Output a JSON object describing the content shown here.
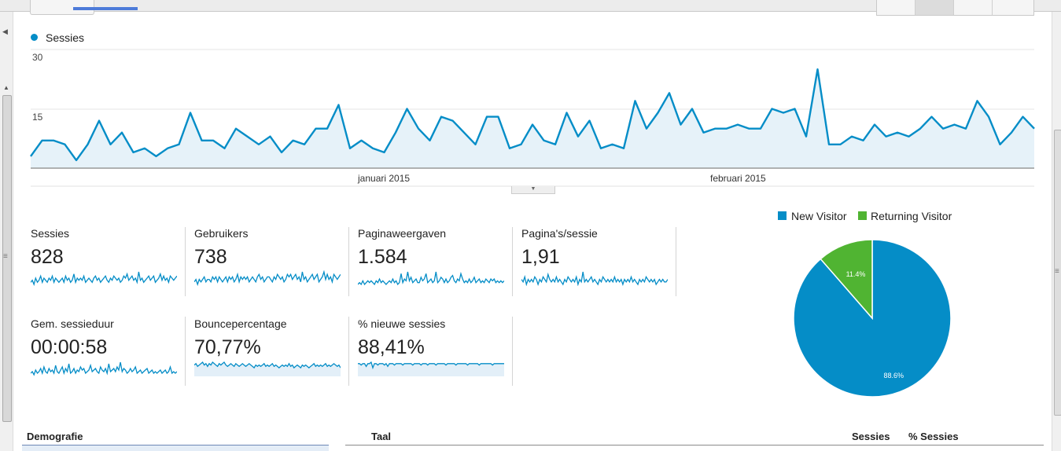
{
  "chart_data": [
    {
      "type": "area",
      "series": [
        {
          "name": "Sessies",
          "color": "#058dc7",
          "values": [
            3,
            7,
            7,
            6,
            2,
            6,
            12,
            6,
            9,
            4,
            5,
            3,
            5,
            6,
            14,
            7,
            7,
            5,
            10,
            8,
            6,
            8,
            4,
            7,
            6,
            10,
            10,
            16,
            5,
            7,
            5,
            4,
            9,
            15,
            10,
            7,
            13,
            12,
            9,
            6,
            13,
            13,
            5,
            6,
            11,
            7,
            6,
            14,
            8,
            12,
            5,
            6,
            5,
            17,
            10,
            14,
            19,
            11,
            15,
            9,
            10,
            10,
            11,
            10,
            10,
            15,
            14,
            15,
            8,
            25,
            6,
            6,
            8,
            7,
            11,
            8,
            9,
            8,
            10,
            13,
            10,
            11,
            10,
            17,
            13,
            6,
            9,
            13,
            10
          ]
        }
      ],
      "y_ticks": [
        "30",
        "15"
      ],
      "ylim": [
        0,
        30
      ],
      "x_labels": [
        "januari 2015",
        "februari 2015"
      ],
      "grid": true
    },
    {
      "type": "pie",
      "slices": [
        {
          "name": "New Visitor",
          "value": 88.6,
          "label": "88.6%",
          "color": "#058dc7"
        },
        {
          "name": "Returning Visitor",
          "value": 11.4,
          "label": "11.4%",
          "color": "#50b432"
        }
      ],
      "legend_position": "top"
    }
  ],
  "main_chart": {
    "legend_label": "Sessies",
    "y_tick_high": "30",
    "y_tick_mid": "15",
    "x_label_jan": "januari 2015",
    "x_label_feb": "februari 2015"
  },
  "metrics": [
    {
      "label": "Sessies",
      "value": "828",
      "spark": [
        3,
        4,
        2,
        5,
        3,
        4,
        6,
        3,
        5,
        4,
        3,
        5,
        4,
        6,
        3,
        5,
        4,
        3,
        4,
        5,
        3,
        6,
        4,
        5,
        3,
        4,
        7,
        3,
        5,
        4,
        5,
        4,
        6,
        3,
        4,
        5,
        4,
        3,
        5,
        6,
        4,
        5,
        3,
        4,
        5,
        6,
        4,
        3,
        5,
        4,
        6,
        5,
        4,
        5,
        3,
        4,
        6,
        5,
        7,
        4,
        5,
        6,
        4,
        5,
        3,
        8,
        4,
        5,
        3,
        4,
        5,
        6,
        4,
        5,
        6,
        3,
        4,
        5,
        7,
        4,
        6,
        4,
        5,
        3,
        6,
        5,
        4,
        5,
        6
      ],
      "area": false
    },
    {
      "label": "Gebruikers",
      "value": "738",
      "spark": [
        3,
        4,
        2,
        4,
        3,
        4,
        5,
        3,
        4,
        4,
        3,
        5,
        4,
        5,
        3,
        5,
        4,
        3,
        4,
        5,
        3,
        5,
        4,
        5,
        3,
        4,
        6,
        3,
        5,
        4,
        5,
        4,
        5,
        3,
        4,
        5,
        4,
        3,
        5,
        6,
        4,
        5,
        3,
        4,
        5,
        5,
        4,
        3,
        5,
        4,
        6,
        5,
        4,
        5,
        3,
        4,
        6,
        5,
        6,
        4,
        5,
        6,
        4,
        5,
        3,
        7,
        4,
        5,
        3,
        4,
        5,
        6,
        4,
        5,
        6,
        3,
        4,
        5,
        7,
        4,
        6,
        4,
        5,
        3,
        6,
        5,
        4,
        5,
        6
      ],
      "area": false
    },
    {
      "label": "Paginaweergaven",
      "value": "1.584",
      "spark": [
        2,
        3,
        2,
        4,
        2,
        3,
        4,
        3,
        4,
        3,
        2,
        4,
        3,
        5,
        3,
        4,
        3,
        2,
        3,
        4,
        3,
        5,
        3,
        4,
        2,
        3,
        8,
        3,
        5,
        4,
        9,
        4,
        6,
        3,
        4,
        5,
        3,
        3,
        6,
        4,
        5,
        8,
        3,
        4,
        5,
        3,
        4,
        9,
        3,
        4,
        6,
        5,
        3,
        5,
        3,
        4,
        6,
        7,
        4,
        3,
        5,
        4,
        8,
        5,
        3,
        4,
        3,
        5,
        3,
        4,
        6,
        3,
        4,
        5,
        3,
        4,
        3,
        5,
        4,
        3,
        5,
        4,
        5,
        3,
        4,
        3,
        4,
        3,
        4
      ],
      "area": false
    },
    {
      "label": "Pagina's/sessie",
      "value": "1,91",
      "spark": [
        5,
        4,
        6,
        3,
        5,
        4,
        5,
        4,
        6,
        5,
        3,
        5,
        4,
        6,
        5,
        4,
        7,
        5,
        4,
        5,
        4,
        6,
        4,
        5,
        4,
        3,
        5,
        4,
        6,
        5,
        4,
        5,
        4,
        6,
        3,
        5,
        4,
        8,
        4,
        5,
        4,
        5,
        6,
        4,
        5,
        4,
        3,
        5,
        4,
        6,
        5,
        4,
        5,
        4,
        5,
        4,
        6,
        4,
        5,
        4,
        5,
        3,
        5,
        4,
        5,
        4,
        6,
        4,
        5,
        4,
        3,
        5,
        4,
        5,
        4,
        6,
        5,
        4,
        5,
        4,
        5,
        3,
        4,
        5,
        4,
        5,
        4,
        4,
        5
      ],
      "area": false
    },
    {
      "label": "Gem. sessieduur",
      "value": "00:00:58",
      "spark": [
        2,
        3,
        1,
        4,
        2,
        3,
        5,
        2,
        6,
        3,
        2,
        5,
        3,
        4,
        2,
        7,
        3,
        2,
        4,
        6,
        2,
        5,
        3,
        8,
        2,
        3,
        5,
        2,
        4,
        3,
        6,
        4,
        5,
        2,
        3,
        4,
        7,
        3,
        4,
        5,
        3,
        2,
        6,
        4,
        3,
        5,
        2,
        8,
        3,
        4,
        5,
        3,
        6,
        4,
        9,
        3,
        5,
        4,
        2,
        3,
        5,
        3,
        4,
        6,
        2,
        3,
        4,
        2,
        3,
        4,
        5,
        2,
        3,
        4,
        2,
        3,
        2,
        3,
        4,
        2,
        3,
        4,
        2,
        3,
        6,
        2,
        3,
        2,
        3
      ],
      "area": false
    },
    {
      "label": "Bouncepercentage",
      "value": "70,77%",
      "spark": [
        7,
        8,
        6,
        7,
        8,
        9,
        7,
        8,
        6,
        8,
        7,
        9,
        8,
        7,
        6,
        8,
        7,
        8,
        9,
        7,
        6,
        7,
        8,
        7,
        6,
        8,
        7,
        6,
        7,
        8,
        7,
        6,
        7,
        8,
        7,
        6,
        5,
        7,
        6,
        7,
        6,
        7,
        8,
        6,
        7,
        6,
        7,
        8,
        6,
        7,
        6,
        5,
        6,
        7,
        6,
        7,
        6,
        8,
        6,
        7,
        5,
        6,
        7,
        6,
        5,
        7,
        6,
        7,
        6,
        5,
        6,
        7,
        8,
        6,
        7,
        6,
        7,
        6,
        7,
        8,
        6,
        7,
        6,
        7,
        8,
        7,
        6,
        7,
        5
      ],
      "area": true
    },
    {
      "label": "% nieuwe sessies",
      "value": "88,41%",
      "spark": [
        8,
        8,
        7,
        8,
        8,
        6,
        8,
        8,
        9,
        5,
        8,
        8,
        7,
        8,
        8,
        8,
        7,
        8,
        6,
        8,
        8,
        8,
        7,
        8,
        8,
        8,
        8,
        7,
        8,
        8,
        8,
        8,
        8,
        7,
        8,
        8,
        8,
        8,
        7,
        8,
        8,
        8,
        7,
        8,
        8,
        8,
        8,
        7,
        8,
        8,
        8,
        8,
        8,
        7,
        8,
        8,
        8,
        8,
        8,
        7,
        8,
        8,
        8,
        8,
        8,
        8,
        7,
        8,
        8,
        8,
        8,
        8,
        8,
        7,
        8,
        8,
        8,
        8,
        8,
        8,
        8,
        7,
        8,
        8,
        8,
        8,
        8,
        8,
        8
      ],
      "area": true
    }
  ],
  "pie_legend": {
    "new": "New Visitor",
    "returning": "Returning Visitor"
  },
  "bottom": {
    "demografie": "Demografie",
    "taal": "Taal",
    "sessies": "Sessies",
    "pct_sessies": "% Sessies"
  },
  "colors": {
    "accent": "#058dc7",
    "green": "#50b432",
    "tab_indicator": "#4d7bd9"
  }
}
